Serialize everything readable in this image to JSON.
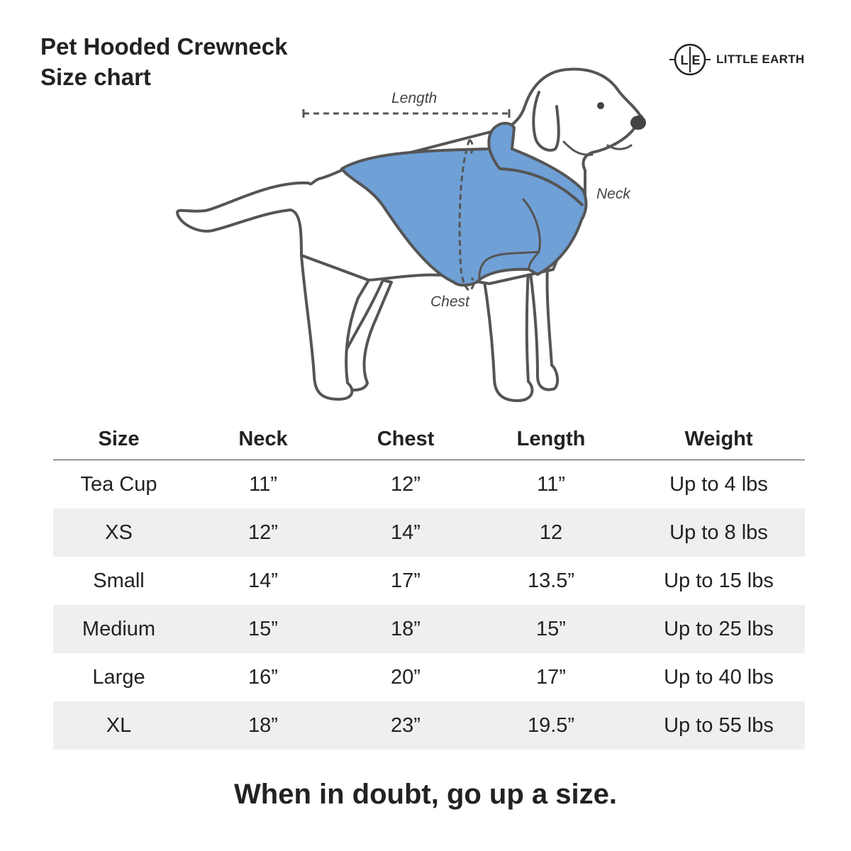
{
  "header": {
    "title_line1": "Pet Hooded Crewneck",
    "title_line2": "Size chart"
  },
  "logo": {
    "mark_left": "L",
    "mark_right": "E",
    "text": "LITTLE EARTH"
  },
  "illustration": {
    "labels": {
      "length": "Length",
      "neck": "Neck",
      "chest": "Chest"
    },
    "hoodie_color": "#6fa0d6",
    "outline_color": "#555555"
  },
  "table": {
    "headers": [
      "Size",
      "Neck",
      "Chest",
      "Length",
      "Weight"
    ],
    "rows": [
      [
        "Tea Cup",
        "11”",
        "12”",
        "11”",
        "Up to 4 lbs"
      ],
      [
        "XS",
        "12”",
        "14”",
        "12",
        "Up to 8 lbs"
      ],
      [
        "Small",
        "14”",
        "17”",
        "13.5”",
        "Up to 15 lbs"
      ],
      [
        "Medium",
        "15”",
        "18”",
        "15”",
        "Up to 25 lbs"
      ],
      [
        "Large",
        "16”",
        "20”",
        "17”",
        "Up to 40 lbs"
      ],
      [
        "XL",
        "18”",
        "23”",
        "19.5”",
        "Up to 55 lbs"
      ]
    ],
    "stripe_color": "#efefef"
  },
  "footer": {
    "note": "When in doubt, go up a size."
  }
}
